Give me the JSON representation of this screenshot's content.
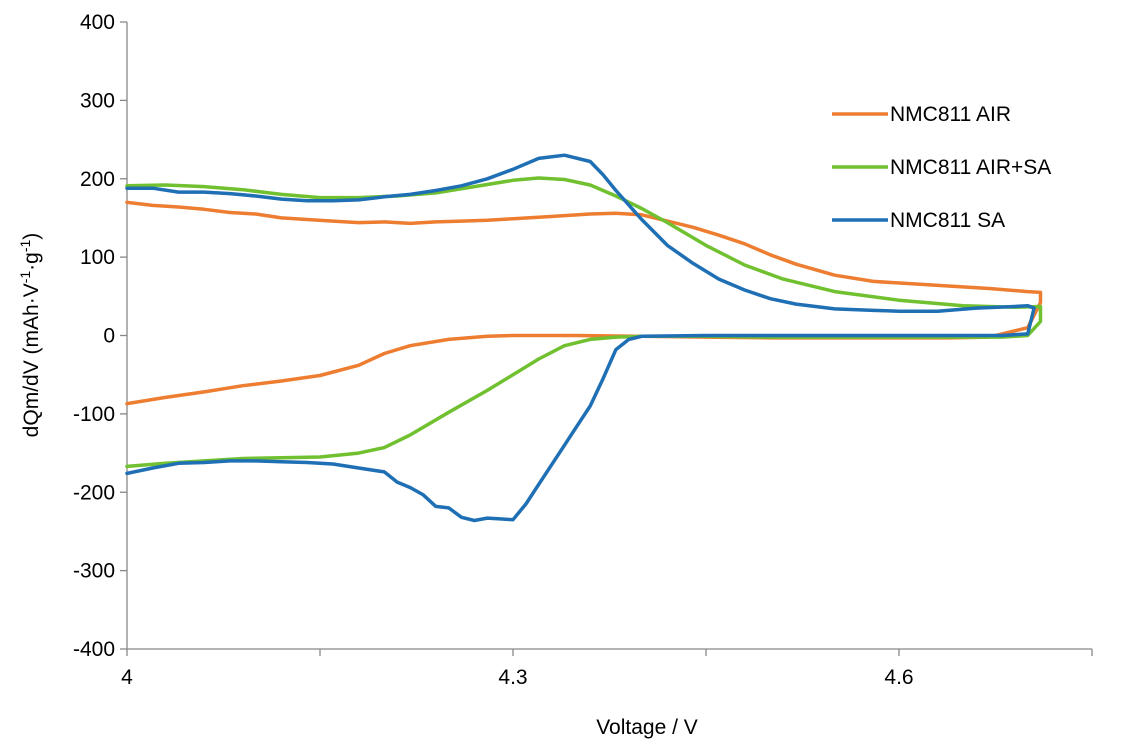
{
  "chart_data": {
    "type": "line",
    "xlabel": "Voltage / V",
    "ylabel_parts": [
      "dQm/dV (mAh·V",
      "-1",
      "·g",
      "-1",
      ")"
    ],
    "xlim": [
      4.0,
      4.75
    ],
    "ylim": [
      -400,
      400
    ],
    "x_ticks": [
      4.0,
      4.15,
      4.3,
      4.45,
      4.6,
      4.75
    ],
    "x_tick_labels": [
      {
        "x": 4.0,
        "label": "4"
      },
      {
        "x": 4.3,
        "label": "4.3"
      },
      {
        "x": 4.6,
        "label": "4.6"
      }
    ],
    "y_ticks": [
      -400,
      -300,
      -200,
      -100,
      0,
      100,
      200,
      300,
      400
    ],
    "y_tick_labels": [
      "-400",
      "-300",
      "-200",
      "-100",
      "0",
      "100",
      "200",
      "300",
      "400"
    ],
    "grid": false,
    "legend_position": "top-right",
    "series": [
      {
        "name": "NMC811 AIR",
        "color": "#ED7D31",
        "x": [
          4.0,
          4.02,
          4.04,
          4.06,
          4.08,
          4.1,
          4.12,
          4.14,
          4.16,
          4.18,
          4.2,
          4.22,
          4.24,
          4.26,
          4.28,
          4.3,
          4.32,
          4.34,
          4.36,
          4.38,
          4.4,
          4.42,
          4.44,
          4.46,
          4.48,
          4.5,
          4.52,
          4.55,
          4.58,
          4.61,
          4.64,
          4.67,
          4.7,
          4.71,
          4.71,
          4.7,
          4.67,
          4.64,
          4.6,
          4.55,
          4.5,
          4.45,
          4.4,
          4.35,
          4.3,
          4.28,
          4.25,
          4.22,
          4.2,
          4.18,
          4.15,
          4.12,
          4.09,
          4.06,
          4.03,
          4.0
        ],
        "y": [
          170,
          166,
          164,
          161,
          157,
          155,
          150,
          148,
          146,
          144,
          145,
          143,
          145,
          146,
          147,
          149,
          151,
          153,
          155,
          156,
          154,
          146,
          138,
          128,
          117,
          103,
          91,
          77,
          69,
          66,
          63,
          60,
          56,
          55,
          42,
          10,
          -2,
          -3,
          -3,
          -3,
          -3,
          -2,
          -1,
          0,
          0,
          -1,
          -5,
          -13,
          -23,
          -38,
          -51,
          -58,
          -64,
          -72,
          -79,
          -87
        ]
      },
      {
        "name": "NMC811 AIR+SA",
        "color": "#70C030",
        "x": [
          4.0,
          4.03,
          4.06,
          4.09,
          4.12,
          4.15,
          4.18,
          4.21,
          4.24,
          4.27,
          4.3,
          4.32,
          4.34,
          4.36,
          4.38,
          4.4,
          4.42,
          4.45,
          4.48,
          4.51,
          4.55,
          4.6,
          4.65,
          4.69,
          4.71,
          4.71,
          4.7,
          4.68,
          4.64,
          4.6,
          4.5,
          4.45,
          4.4,
          4.38,
          4.36,
          4.34,
          4.32,
          4.3,
          4.28,
          4.25,
          4.22,
          4.2,
          4.18,
          4.15,
          4.12,
          4.09,
          4.06,
          4.03,
          4.0
        ],
        "y": [
          191,
          192,
          190,
          186,
          180,
          176,
          176,
          178,
          182,
          190,
          198,
          201,
          199,
          192,
          178,
          162,
          144,
          115,
          90,
          72,
          56,
          45,
          38,
          36,
          37,
          18,
          0,
          -2,
          -2,
          -2,
          -2,
          -1,
          -1,
          -2,
          -5,
          -13,
          -30,
          -50,
          -70,
          -98,
          -127,
          -143,
          -150,
          -155,
          -156,
          -157,
          -160,
          -163,
          -167
        ]
      },
      {
        "name": "NMC811 SA",
        "color": "#1F6FB5",
        "x": [
          4.0,
          4.02,
          4.04,
          4.06,
          4.08,
          4.1,
          4.12,
          4.14,
          4.16,
          4.18,
          4.2,
          4.22,
          4.24,
          4.26,
          4.28,
          4.3,
          4.32,
          4.34,
          4.36,
          4.37,
          4.38,
          4.4,
          4.42,
          4.44,
          4.46,
          4.48,
          4.5,
          4.52,
          4.55,
          4.58,
          4.6,
          4.63,
          4.66,
          4.69,
          4.7,
          4.705,
          4.7,
          4.68,
          4.64,
          4.6,
          4.55,
          4.5,
          4.45,
          4.4,
          4.39,
          4.38,
          4.37,
          4.36,
          4.35,
          4.34,
          4.33,
          4.32,
          4.31,
          4.3,
          4.29,
          4.28,
          4.27,
          4.26,
          4.25,
          4.24,
          4.23,
          4.22,
          4.21,
          4.2,
          4.18,
          4.16,
          4.14,
          4.12,
          4.1,
          4.08,
          4.06,
          4.04,
          4.02,
          4.0
        ],
        "y": [
          188,
          188,
          183,
          183,
          181,
          178,
          174,
          172,
          172,
          173,
          177,
          180,
          185,
          191,
          200,
          212,
          226,
          230,
          222,
          205,
          185,
          148,
          115,
          92,
          72,
          58,
          47,
          40,
          34,
          32,
          31,
          31,
          35,
          37,
          38,
          35,
          2,
          0,
          0,
          0,
          0,
          0,
          0,
          -1,
          -5,
          -18,
          -55,
          -90,
          -115,
          -140,
          -165,
          -190,
          -215,
          -235,
          -234,
          -233,
          -236,
          -232,
          -220,
          -218,
          -203,
          -194,
          -187,
          -174,
          -169,
          -164,
          -162,
          -161,
          -160,
          -160,
          -162,
          -163,
          -169,
          -176
        ]
      }
    ]
  }
}
